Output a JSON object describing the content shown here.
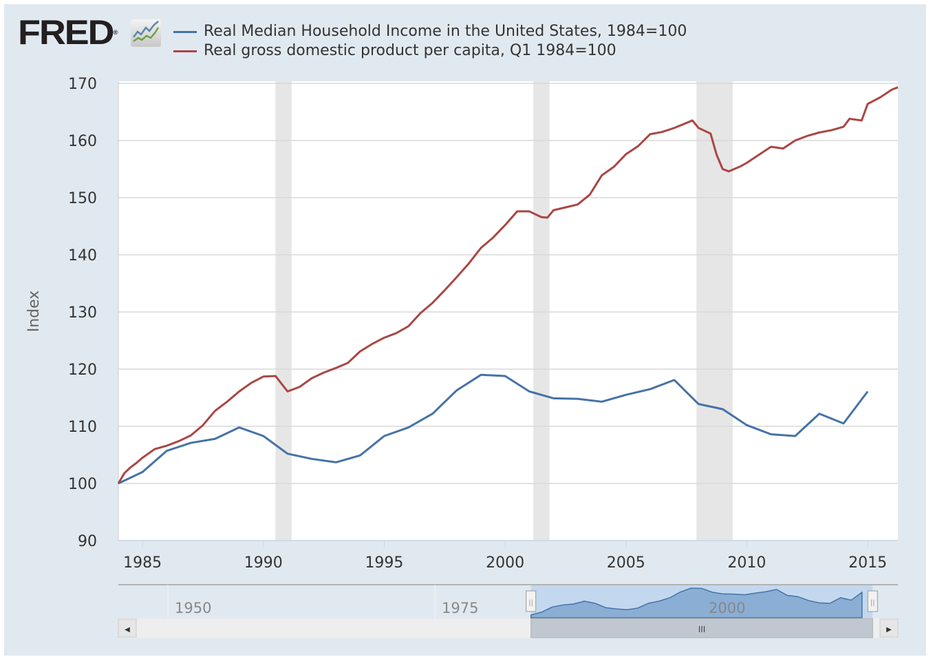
{
  "logo": {
    "text": "FRED",
    "mark": "®"
  },
  "colors": {
    "income": "#4572a7",
    "gdp": "#aa4643",
    "recession": "#e6e6e6",
    "panel": "#e1e9f0",
    "navigator_fill": "#8aaed4",
    "navigator_selection": "#c3d8ee"
  },
  "chart_data": {
    "type": "line",
    "title": "",
    "ylabel": "Index",
    "xlabel": "",
    "ylim": [
      90,
      170
    ],
    "xlim": [
      "1984-01",
      "2016-04"
    ],
    "grid": true,
    "legend_placement": "top-left",
    "yticks": [
      "90",
      "100",
      "110",
      "120",
      "130",
      "140",
      "150",
      "160",
      "170"
    ],
    "xticks": [
      "1985",
      "1990",
      "1995",
      "2000",
      "2005",
      "2010",
      "2015"
    ],
    "recessions": [
      [
        "1990-07",
        "1991-03"
      ],
      [
        "2001-03",
        "2001-11"
      ],
      [
        "2007-12",
        "2009-06"
      ]
    ],
    "series": [
      {
        "name": "Real Median Household Income in the United States, 1984=100",
        "color": "#4572a7",
        "x": [
          "1984",
          "1985",
          "1986",
          "1987",
          "1988",
          "1989",
          "1990",
          "1991",
          "1992",
          "1993",
          "1994",
          "1995",
          "1996",
          "1997",
          "1998",
          "1999",
          "2000",
          "2001",
          "2002",
          "2003",
          "2004",
          "2005",
          "2006",
          "2007",
          "2008",
          "2009",
          "2010",
          "2011",
          "2012",
          "2013",
          "2014",
          "2015"
        ],
        "values": [
          100,
          102.0,
          105.7,
          107.1,
          107.8,
          109.8,
          108.3,
          105.2,
          104.3,
          103.7,
          104.9,
          108.3,
          109.8,
          112.2,
          116.3,
          119.0,
          118.8,
          116.1,
          114.9,
          114.8,
          114.3,
          115.5,
          116.5,
          118.1,
          113.9,
          113.0,
          110.2,
          108.6,
          108.3,
          112.2,
          110.5,
          116.1
        ]
      },
      {
        "name": "Real gross domestic product per capita, Q1 1984=100",
        "color": "#aa4643",
        "x": [
          "1984-01",
          "1984-04",
          "1984-07",
          "1984-10",
          "1985-01",
          "1985-07",
          "1986-01",
          "1986-07",
          "1987-01",
          "1987-07",
          "1988-01",
          "1988-07",
          "1989-01",
          "1989-07",
          "1990-01",
          "1990-07",
          "1991-01",
          "1991-07",
          "1992-01",
          "1992-07",
          "1993-01",
          "1993-07",
          "1994-01",
          "1994-07",
          "1995-01",
          "1995-07",
          "1996-01",
          "1996-07",
          "1997-01",
          "1997-07",
          "1998-01",
          "1998-07",
          "1999-01",
          "1999-07",
          "2000-01",
          "2000-07",
          "2001-01",
          "2001-07",
          "2001-10",
          "2002-01",
          "2002-07",
          "2003-01",
          "2003-07",
          "2004-01",
          "2004-07",
          "2005-01",
          "2005-07",
          "2006-01",
          "2006-07",
          "2007-01",
          "2007-10",
          "2008-01",
          "2008-07",
          "2008-10",
          "2009-01",
          "2009-04",
          "2009-10",
          "2010-01",
          "2010-07",
          "2011-01",
          "2011-07",
          "2012-01",
          "2012-07",
          "2013-01",
          "2013-07",
          "2014-01",
          "2014-04",
          "2014-10",
          "2015-01",
          "2015-07",
          "2016-01",
          "2016-04"
        ],
        "values": [
          100,
          101.8,
          102.8,
          103.6,
          104.5,
          106.0,
          106.6,
          107.4,
          108.4,
          110.2,
          112.7,
          114.3,
          116.1,
          117.6,
          118.7,
          118.8,
          116.1,
          116.9,
          118.4,
          119.4,
          120.2,
          121.1,
          123.1,
          124.4,
          125.5,
          126.3,
          127.5,
          129.8,
          131.6,
          133.8,
          136.1,
          138.5,
          141.2,
          143.0,
          145.2,
          147.6,
          147.6,
          146.6,
          146.5,
          147.8,
          148.3,
          148.8,
          150.5,
          153.9,
          155.4,
          157.6,
          159.0,
          161.1,
          161.5,
          162.2,
          163.5,
          162.2,
          161.2,
          157.5,
          155.0,
          154.6,
          155.5,
          156.1,
          157.5,
          158.9,
          158.6,
          160.0,
          160.8,
          161.4,
          161.8,
          162.4,
          163.8,
          163.5,
          166.4,
          167.5,
          168.9,
          169.3
        ]
      }
    ]
  },
  "navigator": {
    "labels": [
      "1950",
      "1975",
      "2000"
    ],
    "range_start": "1984",
    "range_end": "2016",
    "handle_glyph": "||",
    "thumb_glyph": "III",
    "left_arrow": "◀",
    "right_arrow": "▶"
  }
}
